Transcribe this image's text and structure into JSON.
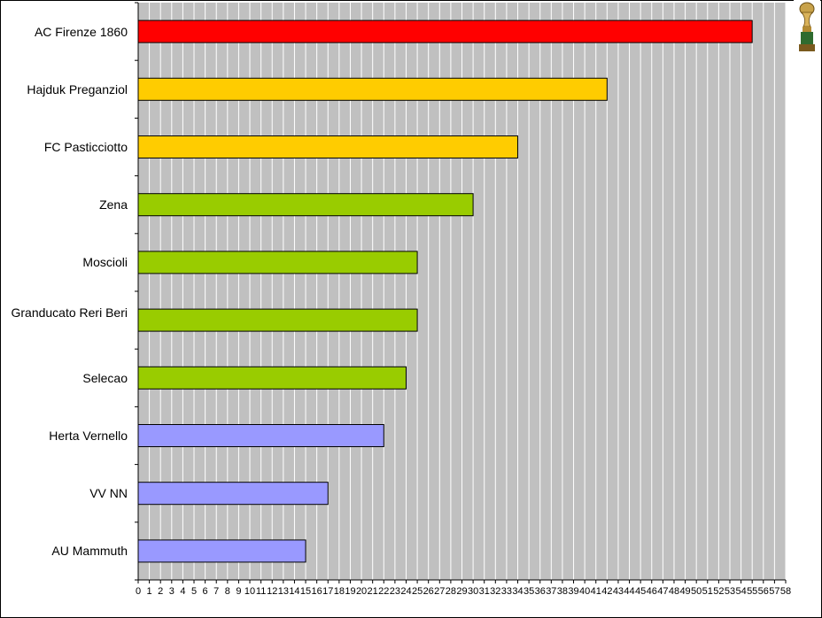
{
  "chart_data": {
    "type": "bar",
    "orientation": "horizontal",
    "categories": [
      "AC Firenze 1860",
      "Hajduk Preganziol",
      "FC Pasticciotto",
      "Zena",
      "Moscioli",
      "Granducato Reri Beri",
      "Selecao",
      "Herta Vernello",
      "VV NN",
      "AU Mammuth"
    ],
    "values": [
      55,
      42,
      34,
      30,
      25,
      25,
      24,
      22,
      17,
      15
    ],
    "colors": [
      "#ff0000",
      "#ffcc00",
      "#ffcc00",
      "#99cc00",
      "#99cc00",
      "#99cc00",
      "#99cc00",
      "#9999ff",
      "#9999ff",
      "#9999ff"
    ],
    "xlim": [
      0,
      58
    ],
    "x_ticks": [
      "0",
      "1",
      "2",
      "3",
      "4",
      "5",
      "6",
      "7",
      "8",
      "9",
      "10",
      "11",
      "12",
      "13",
      "14",
      "15",
      "16",
      "17",
      "18",
      "19",
      "20",
      "21",
      "22",
      "23",
      "24",
      "25",
      "26",
      "27",
      "28",
      "29",
      "30",
      "31",
      "32",
      "33",
      "34",
      "35",
      "36",
      "37",
      "38",
      "39",
      "40",
      "41",
      "42",
      "43",
      "44",
      "45",
      "46",
      "47",
      "48",
      "49",
      "50",
      "51",
      "52",
      "53",
      "54",
      "55",
      "56",
      "57",
      "58"
    ],
    "grid": true,
    "plot_background": "#c0c0c0",
    "gridline_color": "#ffffff",
    "title": "",
    "xlabel": "",
    "ylabel": ""
  },
  "decoration": {
    "icon": "trophy-icon"
  }
}
